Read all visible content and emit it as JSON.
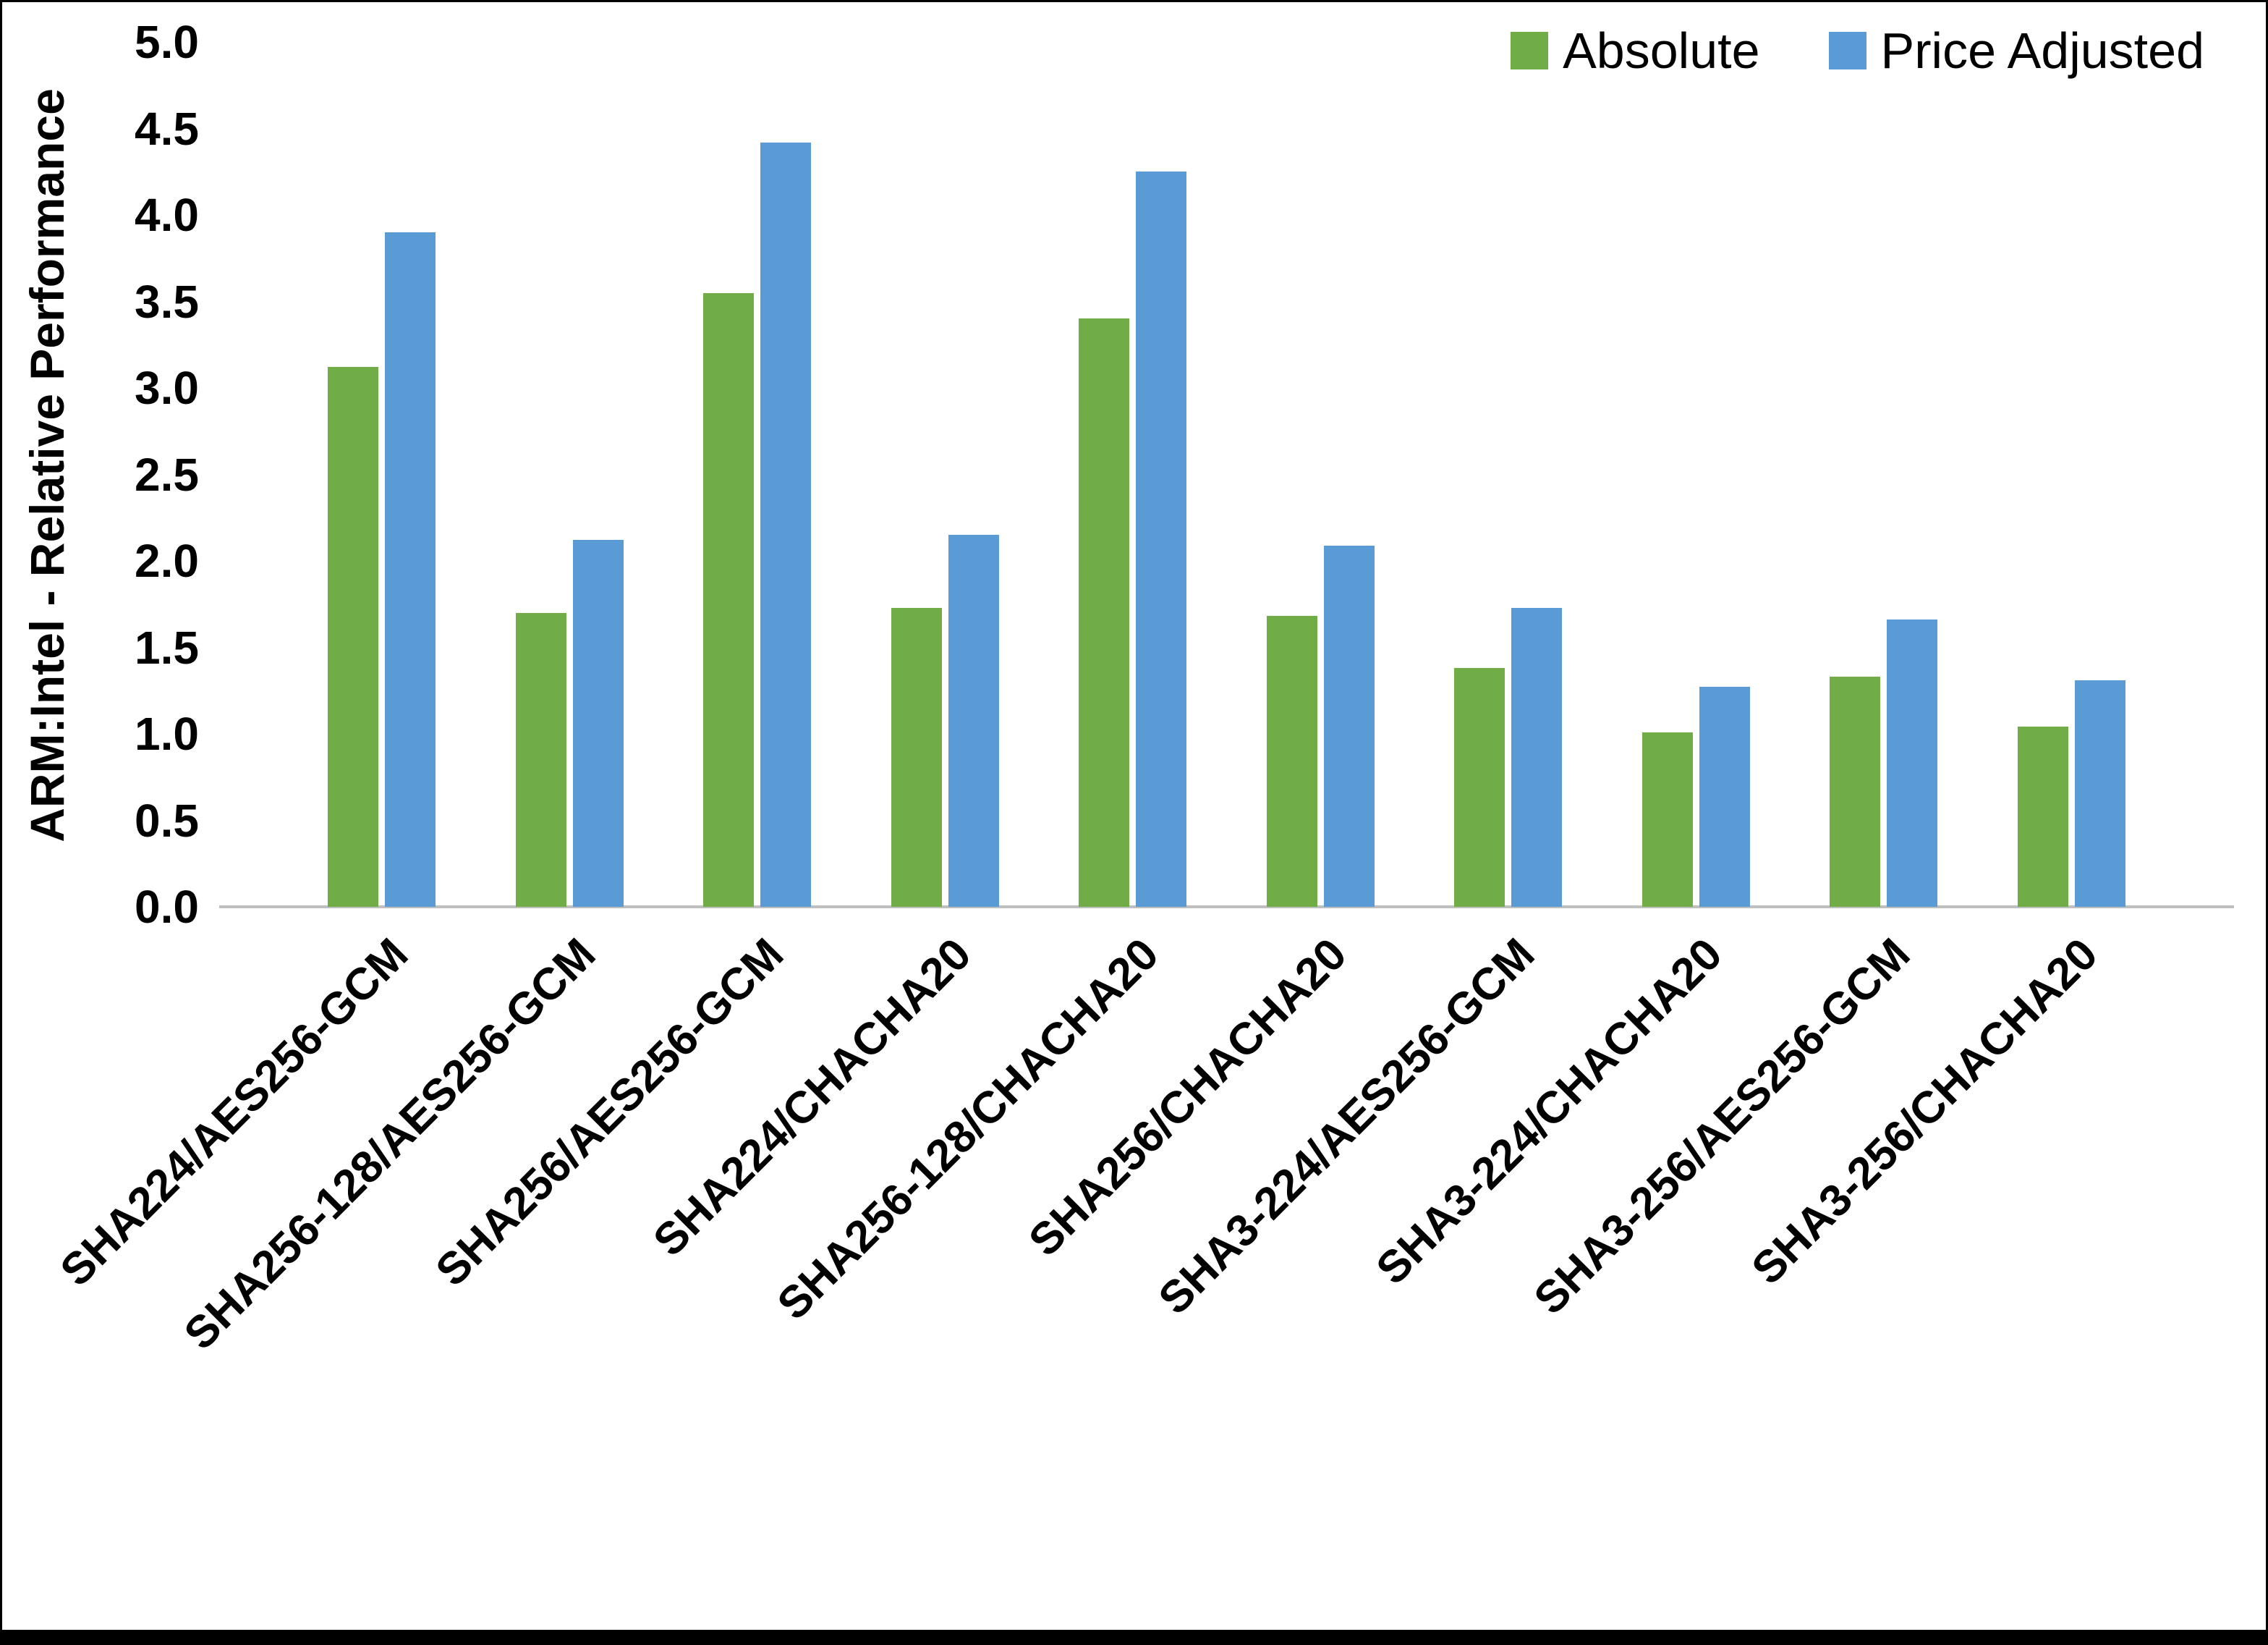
{
  "chart_data": {
    "type": "bar",
    "title": "",
    "xlabel": "",
    "ylabel": "ARM:Intel - Relative Performance",
    "ylim": [
      0,
      5
    ],
    "ytick_step": 0.5,
    "grid": false,
    "legend_position": "top-right",
    "categories": [
      "SHA224/AES256-GCM",
      "SHA256-128/AES256-GCM",
      "SHA256/AES256-GCM",
      "SHA224/CHACHA20",
      "SHA256-128/CHACHA20",
      "SHA256/CHACHA20",
      "SHA3-224/AES256-GCM",
      "SHA3-224/CHACHA20",
      "SHA3-256/AES256-GCM",
      "SHA3-256/CHACHA20"
    ],
    "series": [
      {
        "name": "Absolute",
        "color": "#70AD47",
        "values": [
          3.12,
          1.7,
          3.55,
          1.73,
          3.4,
          1.68,
          1.38,
          1.01,
          1.33,
          1.04
        ]
      },
      {
        "name": "Price Adjusted",
        "color": "#5B9BD5",
        "values": [
          3.9,
          2.12,
          4.42,
          2.15,
          4.25,
          2.09,
          1.73,
          1.27,
          1.66,
          1.31
        ]
      }
    ]
  }
}
